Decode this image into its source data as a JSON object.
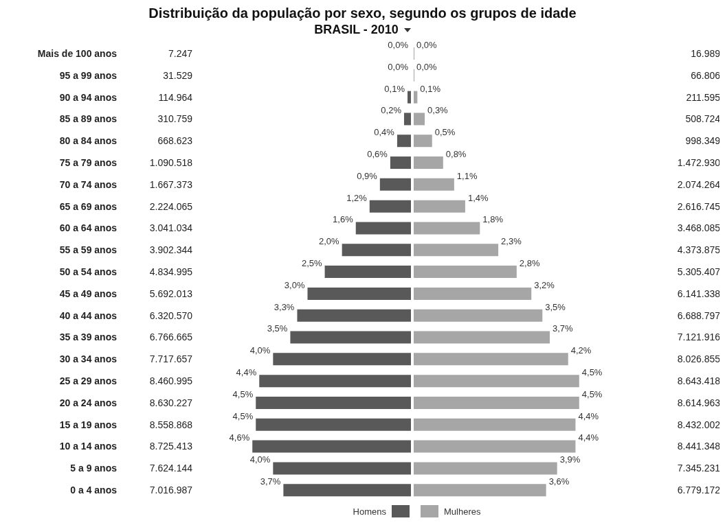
{
  "chart_data": [
    {
      "type": "bar",
      "orientation": "horizontal",
      "title": "Distribuição da população por sexo, segundo os grupos de idade",
      "subtitle": "BRASIL - 2010",
      "categories": [
        "Mais de 100 anos",
        "95 a 99 anos",
        "90 a 94 anos",
        "85 a 89 anos",
        "80 a 84 anos",
        "75 a 79 anos",
        "70 a 74 anos",
        "65 a 69 anos",
        "60 a 64 anos",
        "55 a 59 anos",
        "50 a 54 anos",
        "45 a 49 anos",
        "40 a 44 anos",
        "35 a 39 anos",
        "30 a 34 anos",
        "25 a 29 anos",
        "20 a 24 anos",
        "15 a 19 anos",
        "10 a 14 anos",
        "5 a 9 anos",
        "0 a 4 anos"
      ],
      "series": [
        {
          "name": "Homens",
          "color": "#595959",
          "values": [
            0.0,
            0.0,
            0.1,
            0.2,
            0.4,
            0.6,
            0.9,
            1.2,
            1.6,
            2.0,
            2.5,
            3.0,
            3.3,
            3.5,
            4.0,
            4.4,
            4.5,
            4.5,
            4.6,
            4.0,
            3.7
          ],
          "value_labels": [
            "0,0%",
            "0,0%",
            "0,1%",
            "0,2%",
            "0,4%",
            "0,6%",
            "0,9%",
            "1,2%",
            "1,6%",
            "2,0%",
            "2,5%",
            "3,0%",
            "3,3%",
            "3,5%",
            "4,0%",
            "4,4%",
            "4,5%",
            "4,5%",
            "4,6%",
            "4,0%",
            "3,7%"
          ]
        }
      ],
      "tick_labels": "y",
      "annotations": [
        "7.247",
        "31.529",
        "114.964",
        "310.759",
        "668.623",
        "1.090.518",
        "1.667.373",
        "2.224.065",
        "3.041.034",
        "3.902.344",
        "4.834.995",
        "5.692.013",
        "6.320.570",
        "6.766.665",
        "7.717.657",
        "8.460.995",
        "8.630.227",
        "8.558.868",
        "8.725.413",
        "7.624.144",
        "7.016.987"
      ],
      "legend": "bottom"
    },
    {
      "type": "bar",
      "orientation": "horizontal",
      "series": [
        {
          "name": "Mulheres",
          "color": "#a6a6a6",
          "values": [
            0.0,
            0.0,
            0.1,
            0.3,
            0.5,
            0.8,
            1.1,
            1.4,
            1.8,
            2.3,
            2.8,
            3.2,
            3.5,
            3.7,
            4.2,
            4.5,
            4.5,
            4.4,
            4.4,
            3.9,
            3.6
          ],
          "value_labels": [
            "0,0%",
            "0,0%",
            "0,1%",
            "0,3%",
            "0,5%",
            "0,8%",
            "1,1%",
            "1,4%",
            "1,8%",
            "2,3%",
            "2,8%",
            "3,2%",
            "3,5%",
            "3,7%",
            "4,2%",
            "4,5%",
            "4,5%",
            "4,4%",
            "4,4%",
            "3,9%",
            "3,6%"
          ]
        }
      ],
      "tick_labels": false,
      "annotations": [
        "16.989",
        "66.806",
        "211.595",
        "508.724",
        "998.349",
        "1.472.930",
        "2.074.264",
        "2.616.745",
        "3.468.085",
        "4.373.875",
        "5.305.407",
        "6.141.338",
        "6.688.797",
        "7.121.916",
        "8.026.855",
        "8.643.418",
        "8.614.963",
        "8.432.002",
        "8.441.348",
        "7.345.231",
        "6.779.172"
      ],
      "legend": "bottom"
    }
  ]
}
